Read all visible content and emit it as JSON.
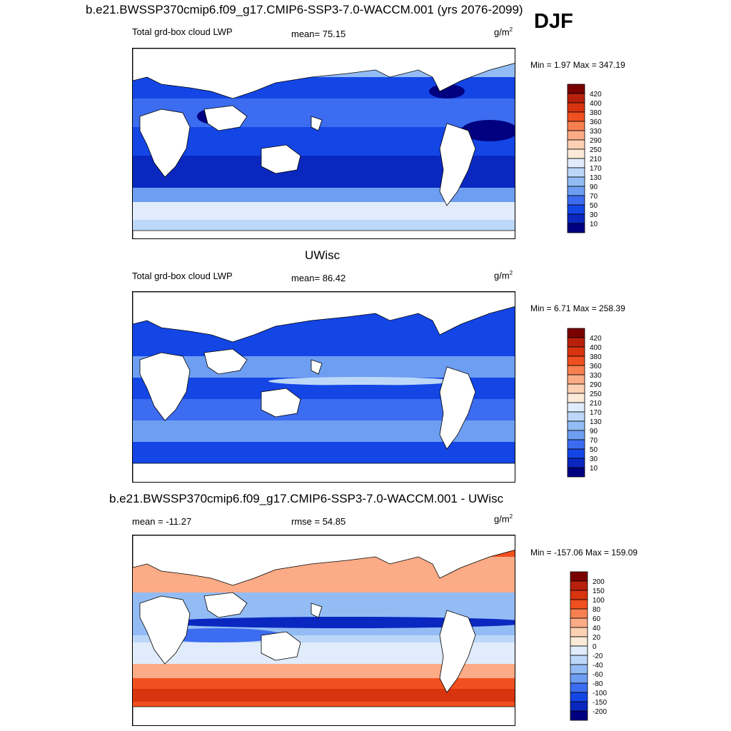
{
  "header": {
    "title": "b.e21.BWSSP370cmip6.f09_g17.CMIP6-SSP3-7.0-WACCM.001 (yrs 2076-2099)",
    "season": "DJF"
  },
  "panels": [
    {
      "id": "model",
      "left_label": "Total grd-box cloud LWP",
      "stat_label": "mean=  75.15",
      "units_base": "g/m",
      "units_exp": "2",
      "minmax": "Min =   1.97 Max = 347.19",
      "colorbar": {
        "colors": [
          "#7a0000",
          "#b8200c",
          "#d8340f",
          "#f0501f",
          "#f88050",
          "#fbab86",
          "#fcd0b2",
          "#fbead8",
          "#e0ecfb",
          "#bcd7f8",
          "#93bcf5",
          "#6e9ef2",
          "#3c6cf0",
          "#1446e6",
          "#0a28c0",
          "#000080"
        ],
        "labels": [
          "420",
          "400",
          "380",
          "360",
          "330",
          "290",
          "250",
          "210",
          "170",
          "130",
          "90",
          "70",
          "50",
          "30",
          "10"
        ]
      }
    },
    {
      "id": "obs",
      "panel_title": "UWisc",
      "left_label": "Total grd-box cloud LWP",
      "stat_label": "mean=  86.42",
      "units_base": "g/m",
      "units_exp": "2",
      "minmax": "Min =   6.71 Max = 258.39",
      "colorbar": {
        "colors": [
          "#7a0000",
          "#b8200c",
          "#d8340f",
          "#f0501f",
          "#f88050",
          "#fbab86",
          "#fcd0b2",
          "#fbead8",
          "#e0ecfb",
          "#bcd7f8",
          "#93bcf5",
          "#6e9ef2",
          "#3c6cf0",
          "#1446e6",
          "#0a28c0",
          "#000080"
        ],
        "labels": [
          "420",
          "400",
          "380",
          "360",
          "330",
          "290",
          "250",
          "210",
          "170",
          "130",
          "90",
          "70",
          "50",
          "30",
          "10"
        ]
      }
    },
    {
      "id": "diff",
      "panel_title": "b.e21.BWSSP370cmip6.f09_g17.CMIP6-SSP3-7.0-WACCM.001 - UWisc",
      "left_label": "mean = -11.27",
      "stat_label": "rmse =  54.85",
      "units_base": "g/m",
      "units_exp": "2",
      "minmax": "Min = -157.06 Max = 159.09",
      "colorbar": {
        "colors": [
          "#7a0000",
          "#b8200c",
          "#d8340f",
          "#f0501f",
          "#f88050",
          "#fbab86",
          "#fcd0b2",
          "#fbead8",
          "#e0ecfb",
          "#bcd7f8",
          "#93bcf5",
          "#6e9ef2",
          "#3c6cf0",
          "#1446e6",
          "#0a28c0",
          "#000080"
        ],
        "labels": [
          "200",
          "150",
          "100",
          "80",
          "60",
          "40",
          "20",
          "0",
          "-20",
          "-40",
          "-60",
          "-80",
          "-100",
          "-150",
          "-200"
        ]
      }
    }
  ]
}
